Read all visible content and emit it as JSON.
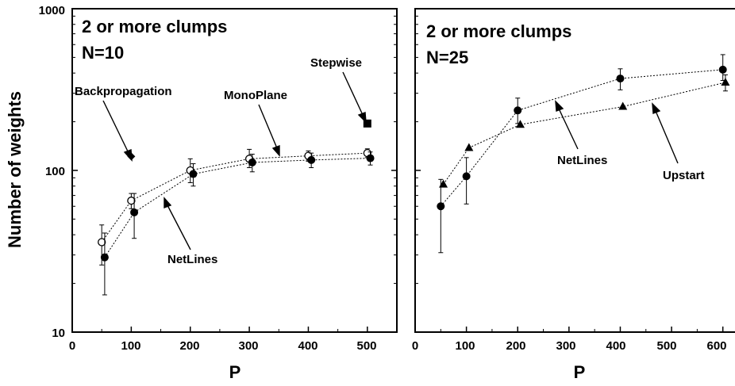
{
  "chart_data": [
    {
      "type": "scatter",
      "title": "2 or more clumps",
      "subtitle": "N=10",
      "xlabel": "P",
      "ylabel": "Number of weights",
      "xlim": [
        0,
        550
      ],
      "ylim": [
        10,
        1000
      ],
      "yscale": "log",
      "xticks": [
        "0",
        "100",
        "200",
        "300",
        "400",
        "500"
      ],
      "yticks": [
        "10",
        "100",
        "1000"
      ],
      "grid": false,
      "series": [
        {
          "name": "MonoPlane",
          "marker": "open-circle",
          "connected": true,
          "x": [
            50,
            100,
            200,
            300,
            400,
            500
          ],
          "y": [
            36,
            65,
            100,
            118,
            123,
            128
          ],
          "err_low": [
            26,
            58,
            84,
            104,
            114,
            120
          ],
          "err_high": [
            46,
            72,
            118,
            135,
            132,
            136
          ]
        },
        {
          "name": "NetLines",
          "marker": "filled-circle",
          "connected": true,
          "x": [
            55,
            105,
            205,
            305,
            405,
            505
          ],
          "y": [
            29,
            55,
            95,
            112,
            116,
            119
          ],
          "err_low": [
            17,
            38,
            80,
            98,
            104,
            108
          ],
          "err_high": [
            41,
            72,
            110,
            126,
            128,
            130
          ]
        },
        {
          "name": "Backpropagation",
          "marker": "filled-diamond",
          "connected": false,
          "x": [
            100
          ],
          "y": [
            122
          ]
        },
        {
          "name": "Stepwise",
          "marker": "filled-square",
          "connected": false,
          "x": [
            500
          ],
          "y": [
            195
          ]
        }
      ],
      "annotations": [
        "Backpropagation",
        "MonoPlane",
        "Stepwise",
        "NetLines"
      ]
    },
    {
      "type": "scatter",
      "title": "2 or more clumps",
      "subtitle": "N=25",
      "xlabel": "P",
      "ylabel": "",
      "xlim": [
        0,
        650
      ],
      "ylim": [
        10,
        1000
      ],
      "yscale": "log",
      "xticks": [
        "0",
        "100",
        "200",
        "300",
        "400",
        "500",
        "600"
      ],
      "grid": false,
      "series": [
        {
          "name": "NetLines",
          "marker": "filled-circle",
          "connected": true,
          "x": [
            50,
            100,
            200,
            400,
            600
          ],
          "y": [
            60,
            92,
            235,
            370,
            420
          ],
          "err_low": [
            31,
            62,
            195,
            315,
            360
          ],
          "err_high": [
            88,
            120,
            280,
            425,
            520
          ]
        },
        {
          "name": "Upstart",
          "marker": "filled-triangle",
          "connected": true,
          "x": [
            55,
            105,
            205,
            405,
            605
          ],
          "y": [
            82,
            138,
            192,
            248,
            350
          ],
          "err_low": [
            82,
            138,
            192,
            248,
            310
          ],
          "err_high": [
            82,
            138,
            192,
            248,
            390
          ]
        }
      ],
      "annotations": [
        "NetLines",
        "Upstart"
      ]
    }
  ]
}
